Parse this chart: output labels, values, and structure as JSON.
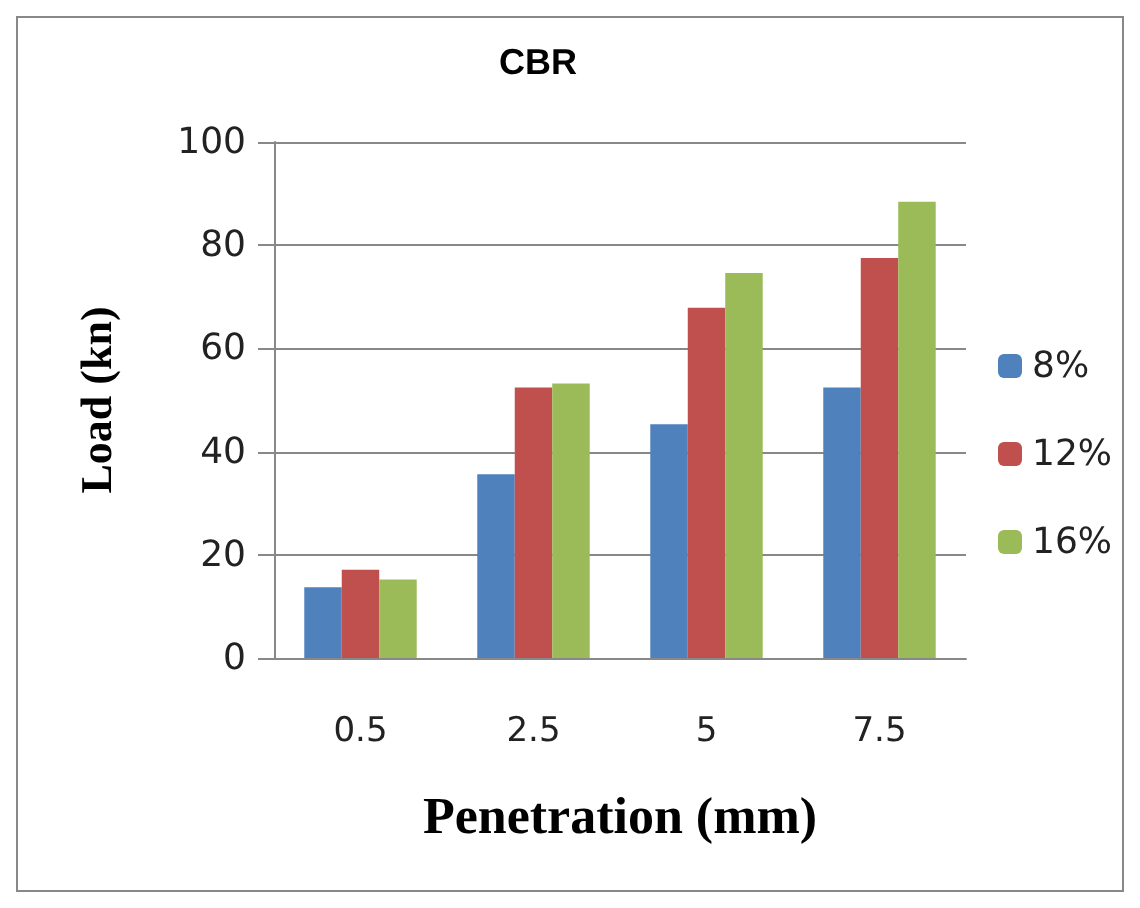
{
  "chart_data": {
    "type": "bar",
    "title": "CBR",
    "xlabel": "Penetration (mm)",
    "ylabel": "Load (kn)",
    "categories": [
      "0.5",
      "2.5",
      "5",
      "7.5"
    ],
    "series": [
      {
        "name": "8%",
        "color": "#4f81bd",
        "values": [
          13.7,
          35.6,
          45.3,
          52.4
        ]
      },
      {
        "name": "12%",
        "color": "#c0504d",
        "values": [
          17.1,
          52.4,
          67.9,
          77.5
        ]
      },
      {
        "name": "16%",
        "color": "#9bbb59",
        "values": [
          15.2,
          53.2,
          74.6,
          88.4
        ]
      }
    ],
    "ylim": [
      0,
      100
    ],
    "yticks": [
      0,
      20,
      40,
      60,
      80,
      100
    ],
    "grid": "y",
    "legend": "right"
  }
}
